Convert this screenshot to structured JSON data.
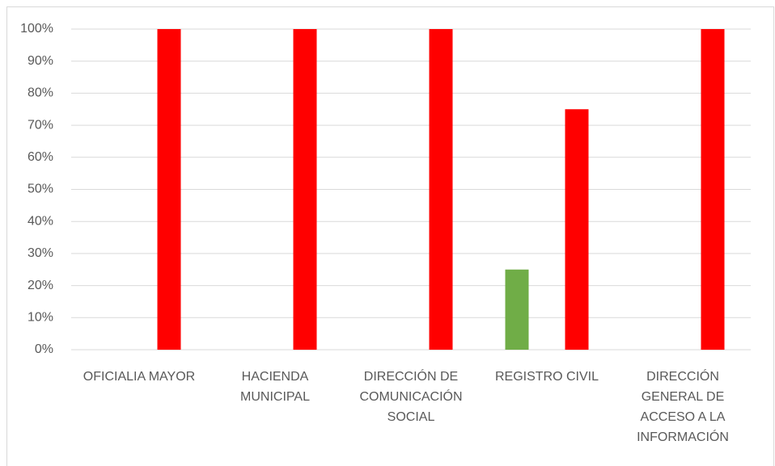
{
  "chart_data": {
    "type": "bar",
    "categories": [
      "OFICIALIA MAYOR",
      "HACIENDA MUNICIPAL",
      "DIRECCIÓN DE COMUNICACIÓN SOCIAL",
      "REGISTRO CIVIL",
      "DIRECCIÓN GENERAL DE ACCESO A LA INFORMACIÓN"
    ],
    "series": [
      {
        "color": "#70ad47",
        "values": [
          0,
          0,
          0,
          25,
          0
        ]
      },
      {
        "color": "#ff0000",
        "values": [
          100,
          100,
          100,
          75,
          100
        ]
      }
    ],
    "ylim": [
      0,
      100
    ],
    "yticks": [
      {
        "value": 0,
        "label": "0%"
      },
      {
        "value": 10,
        "label": "10%"
      },
      {
        "value": 20,
        "label": "20%"
      },
      {
        "value": 30,
        "label": "30%"
      },
      {
        "value": 40,
        "label": "40%"
      },
      {
        "value": 50,
        "label": "50%"
      },
      {
        "value": 60,
        "label": "60%"
      },
      {
        "value": 70,
        "label": "70%"
      },
      {
        "value": 80,
        "label": "80%"
      },
      {
        "value": 90,
        "label": "90%"
      },
      {
        "value": 100,
        "label": "100%"
      }
    ],
    "grid": true
  }
}
